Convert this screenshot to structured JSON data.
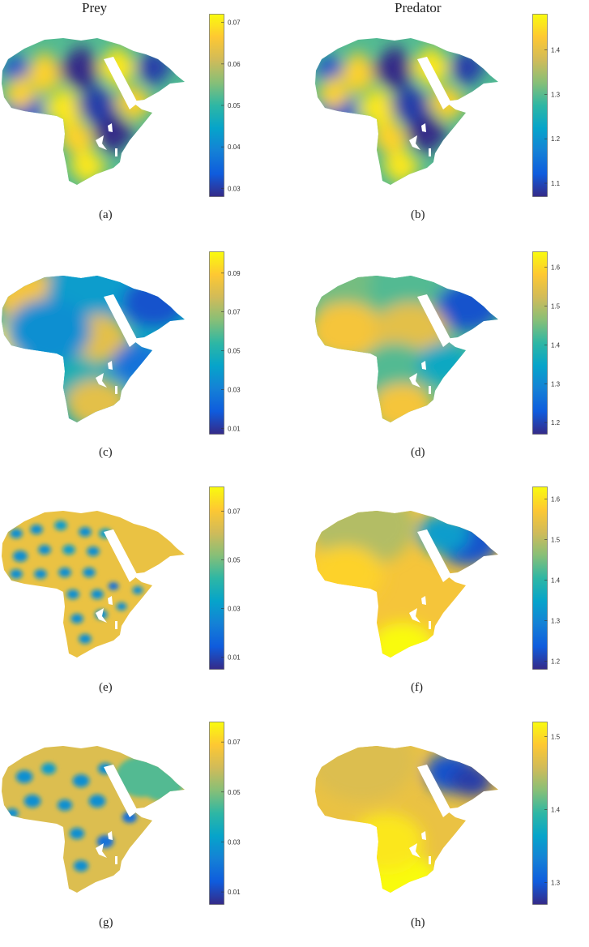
{
  "columns": [
    "Prey",
    "Predator"
  ],
  "colors": {
    "parula": [
      "#352a87",
      "#0f5cdd",
      "#1481d6",
      "#06a4ca",
      "#2eb7a4",
      "#87bf77",
      "#d1bb59",
      "#fec832",
      "#f9fb0e"
    ],
    "hole": "#ffffff"
  },
  "chart_data": [
    {
      "type": "heatmap",
      "caption": "(a)",
      "pattern": "diamond-grid",
      "colorbar": {
        "ticks": [
          "0.07",
          "0.06",
          "0.05",
          "0.04",
          "0.03"
        ],
        "range": [
          0.028,
          0.072
        ]
      }
    },
    {
      "type": "heatmap",
      "caption": "(b)",
      "pattern": "diamond-grid",
      "colorbar": {
        "ticks": [
          "1.4",
          "1.3",
          "1.2",
          "1.1"
        ],
        "range": [
          1.07,
          1.48
        ]
      }
    },
    {
      "type": "heatmap",
      "caption": "(c)",
      "pattern": "smooth-blobs-prey",
      "colorbar": {
        "ticks": [
          "0.09",
          "0.07",
          "0.05",
          "0.03",
          "0.01"
        ],
        "range": [
          0.007,
          0.101
        ]
      }
    },
    {
      "type": "heatmap",
      "caption": "(d)",
      "pattern": "smooth-bands",
      "colorbar": {
        "ticks": [
          "1.6",
          "1.5",
          "1.4",
          "1.3",
          "1.2"
        ],
        "range": [
          1.17,
          1.64
        ]
      }
    },
    {
      "type": "heatmap",
      "caption": "(e)",
      "pattern": "spots",
      "colorbar": {
        "ticks": [
          "0.07",
          "0.05",
          "0.03",
          "0.01"
        ],
        "range": [
          0.005,
          0.08
        ]
      }
    },
    {
      "type": "heatmap",
      "caption": "(f)",
      "pattern": "gradient-south-high",
      "colorbar": {
        "ticks": [
          "1.6",
          "1.5",
          "1.4",
          "1.3",
          "1.2"
        ],
        "range": [
          1.18,
          1.63
        ]
      }
    },
    {
      "type": "heatmap",
      "caption": "(g)",
      "pattern": "labyrinth",
      "colorbar": {
        "ticks": [
          "0.07",
          "0.05",
          "0.03",
          "0.01"
        ],
        "range": [
          0.005,
          0.078
        ]
      }
    },
    {
      "type": "heatmap",
      "caption": "(h)",
      "pattern": "gradient-nearly-uniform",
      "colorbar": {
        "ticks": [
          "1.5",
          "1.4",
          "1.3"
        ],
        "range": [
          1.27,
          1.52
        ]
      }
    }
  ]
}
